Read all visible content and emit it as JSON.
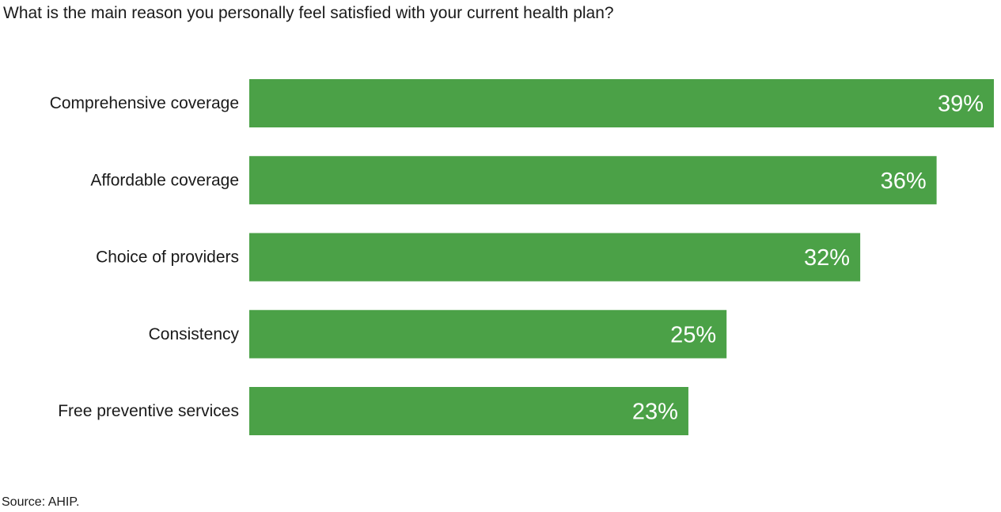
{
  "title": "What is the main reason you personally feel satisfied with your current health plan?",
  "source": "Source: AHIP.",
  "colors": {
    "bar": "#4ba147",
    "text": "#1a1a1a",
    "value_text": "#ffffff"
  },
  "chart_data": {
    "type": "bar",
    "orientation": "horizontal",
    "title": "What is the main reason you personally feel satisfied with your current health plan?",
    "xlabel": "",
    "ylabel": "",
    "categories": [
      "Comprehensive coverage",
      "Affordable coverage",
      "Choice of providers",
      "Consistency",
      "Free preventive services"
    ],
    "values": [
      39,
      36,
      32,
      25,
      23
    ],
    "value_labels": [
      "39%",
      "36%",
      "32%",
      "25%",
      "23%"
    ],
    "unit": "%",
    "grid": false,
    "legend": "none"
  }
}
